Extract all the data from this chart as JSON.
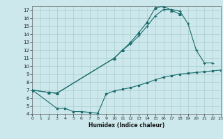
{
  "bg_color": "#cce8ec",
  "line_color": "#1a6b6b",
  "grid_color": "#aacccc",
  "xlabel": "Humidex (Indice chaleur)",
  "xlim": [
    0,
    23
  ],
  "ylim": [
    4,
    17.5
  ],
  "xticks": [
    0,
    1,
    2,
    3,
    4,
    5,
    6,
    7,
    8,
    9,
    10,
    11,
    12,
    13,
    14,
    15,
    16,
    17,
    18,
    19,
    20,
    21,
    22,
    23
  ],
  "yticks": [
    4,
    5,
    6,
    7,
    8,
    9,
    10,
    11,
    12,
    13,
    14,
    15,
    16,
    17
  ],
  "curve1_x": [
    0,
    2,
    3,
    10,
    11,
    12,
    13,
    14,
    15,
    16,
    17,
    18
  ],
  "curve1_y": [
    7.0,
    6.7,
    6.6,
    11.0,
    12.0,
    13.0,
    14.2,
    15.5,
    17.3,
    17.5,
    17.0,
    16.5
  ],
  "curve2_x": [
    0,
    2,
    3,
    10,
    11,
    12,
    13,
    14,
    15,
    16,
    17,
    18,
    19,
    20,
    21,
    22
  ],
  "curve2_y": [
    7.0,
    6.7,
    6.6,
    11.0,
    12.0,
    12.8,
    13.8,
    15.0,
    16.3,
    17.1,
    17.1,
    16.9,
    15.3,
    12.0,
    10.4,
    10.4
  ],
  "curve3_x": [
    0,
    3,
    4,
    5,
    6,
    7,
    8,
    9,
    10,
    11,
    12,
    13,
    14,
    15,
    16,
    17,
    18,
    19,
    20,
    21,
    22,
    23
  ],
  "curve3_y": [
    7.0,
    4.7,
    4.7,
    4.3,
    4.3,
    4.2,
    4.1,
    6.5,
    6.9,
    7.1,
    7.3,
    7.6,
    7.9,
    8.3,
    8.6,
    8.8,
    9.0,
    9.1,
    9.2,
    9.3,
    9.4,
    9.5
  ]
}
